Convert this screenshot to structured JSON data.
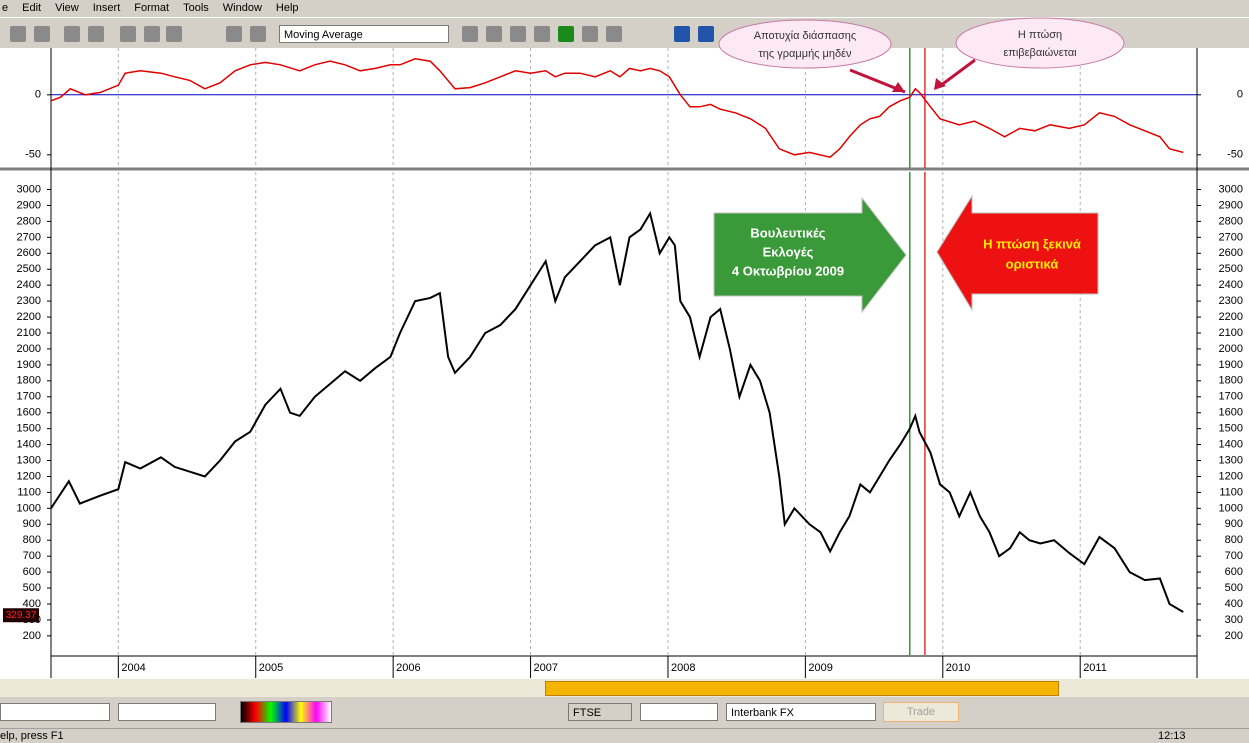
{
  "menu": [
    "e",
    "Edit",
    "View",
    "Insert",
    "Format",
    "Tools",
    "Window",
    "Help"
  ],
  "toolbar": {
    "indicator": "Moving Average"
  },
  "annotations": {
    "callout_fail": [
      "Αποτυχία διάσπασης",
      "της γραμμής μηδέν"
    ],
    "callout_confirm": [
      "Η πτώση",
      "επιβεβαιώνεται"
    ],
    "arrow_elections": [
      "Βουλευτικές",
      "Εκλογές",
      "4 Οκτωβρίου 2009"
    ],
    "arrow_fall": [
      "Η πτώση ξεκινά",
      "οριστικά"
    ]
  },
  "chart_data": [
    {
      "type": "line",
      "xlim": [
        2003.51,
        2011.85
      ],
      "ylim": [
        -61,
        39
      ],
      "yticks": [
        -50,
        0
      ],
      "xticks": [
        2004,
        2005,
        2006,
        2007,
        2008,
        2009,
        2010,
        2011
      ],
      "grid": true,
      "zero_line_color": "#0000c0",
      "vlines": [
        {
          "x": 2009.76,
          "color": "#008000"
        },
        {
          "x": 2009.87,
          "color": "#e00000"
        }
      ],
      "x": [
        2003.51,
        2003.58,
        2003.65,
        2003.76,
        2003.87,
        2004.0,
        2004.05,
        2004.16,
        2004.31,
        2004.41,
        2004.52,
        2004.63,
        2004.74,
        2004.85,
        2004.96,
        2005.07,
        2005.18,
        2005.32,
        2005.43,
        2005.54,
        2005.65,
        2005.76,
        2005.87,
        2005.98,
        2006.05,
        2006.16,
        2006.27,
        2006.34,
        2006.45,
        2006.56,
        2006.67,
        2006.78,
        2006.89,
        2007.0,
        2007.11,
        2007.18,
        2007.25,
        2007.36,
        2007.47,
        2007.58,
        2007.65,
        2007.72,
        2007.8,
        2007.87,
        2007.94,
        2008.01,
        2008.09,
        2008.16,
        2008.23,
        2008.31,
        2008.38,
        2008.49,
        2008.6,
        2008.71,
        2008.81,
        2008.92,
        2009.03,
        2009.18,
        2009.25,
        2009.32,
        2009.4,
        2009.47,
        2009.54,
        2009.61,
        2009.69,
        2009.76,
        2009.8,
        2009.83,
        2009.91,
        2009.98,
        2010.12,
        2010.23,
        2010.34,
        2010.45,
        2010.56,
        2010.67,
        2010.78,
        2010.92,
        2011.03,
        2011.14,
        2011.25,
        2011.36,
        2011.47,
        2011.58,
        2011.65,
        2011.75
      ],
      "series": [
        {
          "color": "#e00000",
          "values": [
            -5,
            -2,
            5,
            0,
            2,
            8,
            18,
            20,
            18,
            15,
            12,
            5,
            10,
            20,
            25,
            27,
            25,
            20,
            25,
            28,
            25,
            20,
            22,
            25,
            25,
            30,
            28,
            20,
            5,
            6,
            10,
            15,
            20,
            18,
            20,
            15,
            18,
            18,
            15,
            20,
            15,
            22,
            20,
            22,
            20,
            15,
            0,
            -10,
            -10,
            -8,
            -12,
            -15,
            -20,
            -28,
            -45,
            -50,
            -48,
            -52,
            -45,
            -35,
            -25,
            -20,
            -18,
            -10,
            -5,
            -2,
            5,
            2,
            -10,
            -20,
            -25,
            -22,
            -28,
            -35,
            -28,
            -30,
            -25,
            -28,
            -25,
            -15,
            -18,
            -25,
            -30,
            -35,
            -45,
            -48
          ]
        }
      ]
    },
    {
      "type": "line",
      "xlim": [
        2003.51,
        2011.85
      ],
      "ylim": [
        80,
        3110
      ],
      "yticks": [
        200,
        300,
        400,
        500,
        600,
        700,
        800,
        900,
        1000,
        1100,
        1200,
        1300,
        1400,
        1500,
        1600,
        1700,
        1800,
        1900,
        2000,
        2100,
        2200,
        2300,
        2400,
        2500,
        2600,
        2700,
        2800,
        2900,
        3000
      ],
      "xticks": [
        2004,
        2005,
        2006,
        2007,
        2008,
        2009,
        2010,
        2011
      ],
      "grid": true,
      "last_value": 329.37,
      "vlines": [
        {
          "x": 2009.76,
          "color": "#008000"
        },
        {
          "x": 2009.87,
          "color": "#e00000"
        }
      ],
      "x": [
        2003.51,
        2003.64,
        2003.72,
        2003.87,
        2004.0,
        2004.05,
        2004.16,
        2004.31,
        2004.41,
        2004.52,
        2004.63,
        2004.74,
        2004.85,
        2004.96,
        2005.07,
        2005.18,
        2005.25,
        2005.32,
        2005.43,
        2005.54,
        2005.65,
        2005.76,
        2005.87,
        2005.98,
        2006.05,
        2006.16,
        2006.27,
        2006.34,
        2006.4,
        2006.45,
        2006.56,
        2006.67,
        2006.78,
        2006.89,
        2007.0,
        2007.11,
        2007.18,
        2007.25,
        2007.36,
        2007.47,
        2007.58,
        2007.65,
        2007.72,
        2007.8,
        2007.87,
        2007.94,
        2008.01,
        2008.05,
        2008.09,
        2008.16,
        2008.23,
        2008.31,
        2008.38,
        2008.45,
        2008.52,
        2008.6,
        2008.67,
        2008.74,
        2008.81,
        2008.85,
        2008.92,
        2009.03,
        2009.11,
        2009.18,
        2009.25,
        2009.32,
        2009.4,
        2009.47,
        2009.54,
        2009.61,
        2009.69,
        2009.76,
        2009.8,
        2009.83,
        2009.91,
        2009.98,
        2010.05,
        2010.12,
        2010.2,
        2010.27,
        2010.34,
        2010.41,
        2010.49,
        2010.56,
        2010.63,
        2010.71,
        2010.81,
        2010.92,
        2011.03,
        2011.14,
        2011.25,
        2011.36,
        2011.47,
        2011.58,
        2011.65,
        2011.75
      ],
      "series": [
        {
          "color": "#000000",
          "values": [
            1000,
            1170,
            1030,
            1080,
            1120,
            1290,
            1250,
            1320,
            1260,
            1230,
            1200,
            1300,
            1420,
            1480,
            1650,
            1750,
            1600,
            1580,
            1700,
            1780,
            1860,
            1800,
            1880,
            1950,
            2100,
            2300,
            2320,
            2350,
            1950,
            1850,
            1950,
            2100,
            2150,
            2250,
            2400,
            2550,
            2300,
            2450,
            2550,
            2650,
            2700,
            2400,
            2700,
            2750,
            2850,
            2600,
            2700,
            2650,
            2300,
            2200,
            1950,
            2200,
            2250,
            2000,
            1700,
            1900,
            1800,
            1600,
            1200,
            900,
            1000,
            900,
            850,
            730,
            850,
            950,
            1150,
            1100,
            1200,
            1300,
            1400,
            1500,
            1580,
            1480,
            1350,
            1150,
            1100,
            950,
            1100,
            950,
            850,
            700,
            750,
            850,
            800,
            780,
            800,
            720,
            650,
            820,
            750,
            600,
            550,
            560,
            400,
            350
          ]
        }
      ]
    }
  ],
  "bottom_toolbar": {
    "symbol": "FTSE",
    "feed": "Interbank FX",
    "trade": "Trade"
  },
  "statusbar": {
    "help": "elp, press F1",
    "time": "12:13"
  }
}
